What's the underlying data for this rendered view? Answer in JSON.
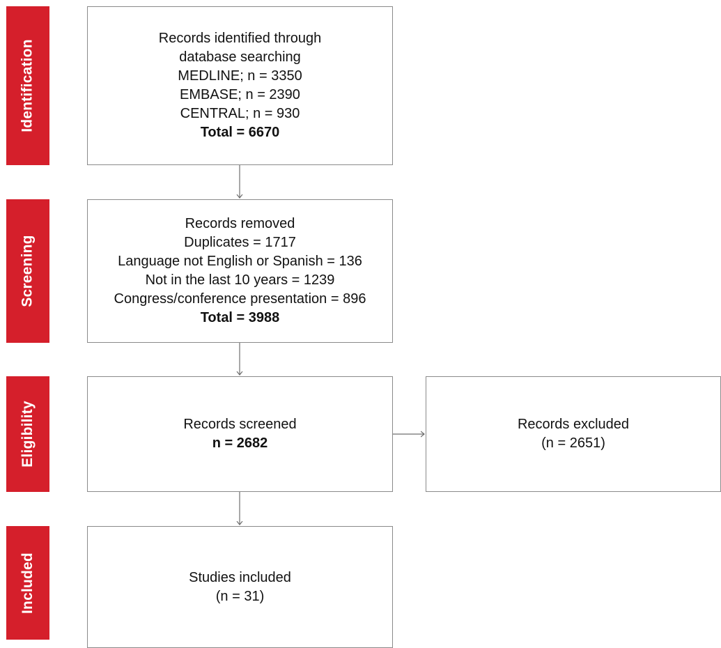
{
  "phases": {
    "identification": "Identification",
    "screening": "Screening",
    "eligibility": "Eligibility",
    "included": "Included"
  },
  "boxes": {
    "identified": {
      "lines": [
        "Records identified through",
        "database searching",
        "MEDLINE; n = 3350",
        "EMBASE; n = 2390",
        "CENTRAL; n = 930"
      ],
      "total": "Total = 6670"
    },
    "removed": {
      "lines": [
        "Records removed",
        "Duplicates = 1717",
        "Language not English or Spanish = 136",
        "Not in the last 10 years = 1239",
        "Congress/conference presentation = 896"
      ],
      "total": "Total = 3988"
    },
    "screened": {
      "title": "Records screened",
      "count": "n = 2682"
    },
    "excluded": {
      "title": "Records excluded",
      "count": "(n = 2651)"
    },
    "included": {
      "title": "Studies included",
      "count": "(n = 31)"
    }
  },
  "colors": {
    "phase_band": "#d51f2b",
    "box_border": "#8a8a8a",
    "arrow": "#6e6e6e"
  }
}
